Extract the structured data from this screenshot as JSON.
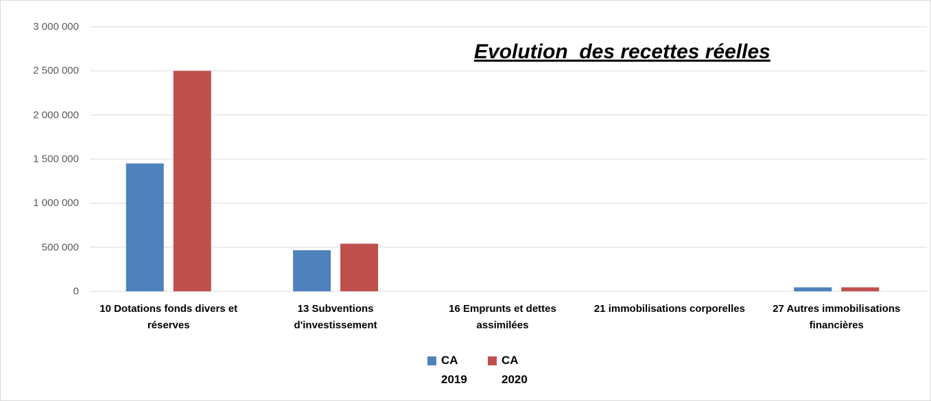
{
  "chart_data": {
    "type": "bar",
    "title": "Evolution  des recettes réelles",
    "categories": [
      "10 Dotations fonds divers et réserves",
      "13 Subventions d'investissement",
      "16 Emprunts et dettes assimilées",
      "21 immobilisations corporelles",
      "27 Autres immobilisations financières"
    ],
    "series": [
      {
        "name": "CA 2019",
        "color": "#4f81bd",
        "values": [
          1450000,
          466000,
          0,
          0,
          45000
        ]
      },
      {
        "name": "CA 2020",
        "color": "#c0504d",
        "values": [
          2500000,
          540000,
          0,
          0,
          45000
        ]
      }
    ],
    "ylim": [
      0,
      3000000
    ],
    "yticks": [
      0,
      {
        "value": 500000,
        "label": "500 000"
      },
      {
        "value": 1000000,
        "label": "1 000 000"
      },
      {
        "value": 1500000,
        "label": "1 500 000"
      },
      {
        "value": 2000000,
        "label": "2 000 000"
      },
      {
        "value": 2500000,
        "label": "2 500 000"
      },
      {
        "value": 3000000,
        "label": "3 000 000"
      }
    ],
    "grid": true,
    "legend": "bottom"
  }
}
